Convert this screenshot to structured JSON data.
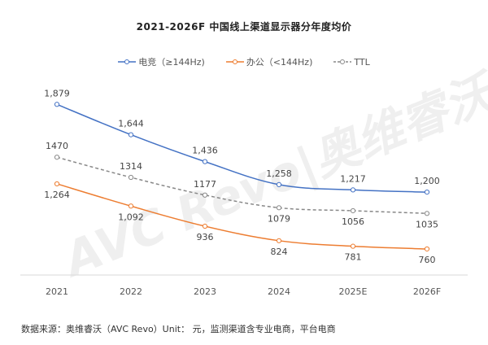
{
  "chart_data": {
    "type": "line",
    "title": "2021-2026F 中国线上渠道显示器分年度均价",
    "categories": [
      "2021",
      "2022",
      "2023",
      "2024",
      "2025E",
      "2026F"
    ],
    "series": [
      {
        "name": "电竞（≥144Hz)",
        "color": "#4472c4",
        "values": [
          1879,
          1644,
          1436,
          1258,
          1217,
          1200
        ],
        "labels": [
          "1,879",
          "1,644",
          "1,436",
          "1,258",
          "1,217",
          "1,200"
        ],
        "dash": false
      },
      {
        "name": "办公（<144Hz)",
        "color": "#ed7d31",
        "values": [
          1264,
          1092,
          936,
          824,
          781,
          760
        ],
        "labels": [
          "1,264",
          "1,092",
          "936",
          "824",
          "781",
          "760"
        ],
        "dash": false
      },
      {
        "name": "TTL",
        "color": "#888888",
        "values": [
          1470,
          1314,
          1177,
          1079,
          1056,
          1035
        ],
        "labels": [
          "1470",
          "1314",
          "1177",
          "1079",
          "1056",
          "1035"
        ],
        "dash": true
      }
    ],
    "ylim": [
      700,
      1950
    ],
    "grid": false,
    "legend": "top",
    "y_axis_visible": false
  },
  "source": "数据来源：奥维睿沃（AVC Revo）Unit： 元，监测渠道含专业电商，平台电商",
  "watermark": "AVC Revo|奥维睿沃"
}
